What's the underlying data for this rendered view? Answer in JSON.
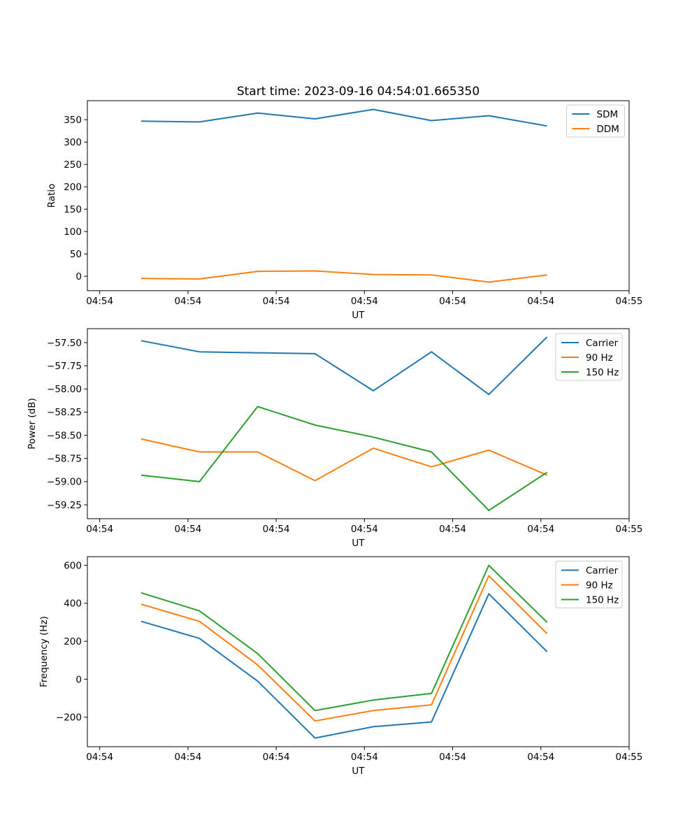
{
  "figure": {
    "title": "Start time: 2023-09-16 04:54:01.665350",
    "background": "#ffffff"
  },
  "colors": {
    "blue": "#1f77b4",
    "orange": "#ff7f0e",
    "green": "#2ca02c",
    "legend_border": "#cccccc",
    "axes": "#000000"
  },
  "chart_data": [
    {
      "type": "line",
      "title": "",
      "xlabel": "UT",
      "ylabel": "Ratio",
      "grid": false,
      "legend_position": "upper right",
      "x_units": "seconds after 04:54:00",
      "x": [
        4.7,
        11.3,
        17.9,
        24.4,
        31.0,
        37.6,
        44.1,
        50.7
      ],
      "xlim": [
        -1.4,
        60
      ],
      "xticks": [
        0,
        10,
        20,
        30,
        40,
        50,
        60
      ],
      "xtick_labels": [
        "04:54",
        "04:54",
        "04:54",
        "04:54",
        "04:54",
        "04:54",
        "04:55"
      ],
      "ylim": [
        -32.3,
        392.6
      ],
      "yticks": [
        0,
        50,
        100,
        150,
        200,
        250,
        300,
        350
      ],
      "ytick_labels": [
        "0",
        "50",
        "100",
        "150",
        "200",
        "250",
        "300",
        "350"
      ],
      "series": [
        {
          "name": "SDM",
          "color": "#1f77b4",
          "values": [
            347,
            345,
            365,
            352,
            373,
            348,
            359,
            336
          ]
        },
        {
          "name": "DDM",
          "color": "#ff7f0e",
          "values": [
            -5,
            -6,
            11,
            12,
            4,
            3,
            -13,
            3
          ]
        }
      ]
    },
    {
      "type": "line",
      "title": "",
      "xlabel": "UT",
      "ylabel": "Power (dB)",
      "grid": false,
      "legend_position": "upper right",
      "x_units": "seconds after 04:54:00",
      "x": [
        4.7,
        11.3,
        17.9,
        24.4,
        31.0,
        37.6,
        44.1,
        50.7
      ],
      "xlim": [
        -1.4,
        60
      ],
      "xticks": [
        0,
        10,
        20,
        30,
        40,
        50,
        60
      ],
      "xtick_labels": [
        "04:54",
        "04:54",
        "04:54",
        "04:54",
        "04:54",
        "04:54",
        "04:55"
      ],
      "ylim": [
        -59.4,
        -57.35
      ],
      "yticks": [
        -59.25,
        -59.0,
        -58.75,
        -58.5,
        -58.25,
        -58.0,
        -57.75,
        -57.5
      ],
      "ytick_labels": [
        "−59.25",
        "−59.00",
        "−58.75",
        "−58.50",
        "−58.25",
        "−58.00",
        "−57.75",
        "−57.50"
      ],
      "series": [
        {
          "name": "Carrier",
          "color": "#1f77b4",
          "values": [
            -57.48,
            -57.6,
            -57.61,
            -57.62,
            -58.02,
            -57.6,
            -58.06,
            -57.44
          ]
        },
        {
          "name": "90 Hz",
          "color": "#ff7f0e",
          "values": [
            -58.54,
            -58.68,
            -58.68,
            -58.99,
            -58.64,
            -58.84,
            -58.66,
            -58.93
          ]
        },
        {
          "name": "150 Hz",
          "color": "#2ca02c",
          "values": [
            -58.93,
            -59.0,
            -58.19,
            -58.39,
            -58.52,
            -58.68,
            -59.31,
            -58.9
          ]
        }
      ]
    },
    {
      "type": "line",
      "title": "",
      "xlabel": "UT",
      "ylabel": "Frequency (Hz)",
      "grid": false,
      "legend_position": "upper right",
      "x_units": "seconds after 04:54:00",
      "x": [
        4.7,
        11.3,
        17.9,
        24.4,
        31.0,
        37.6,
        44.1,
        50.7
      ],
      "xlim": [
        -1.4,
        60
      ],
      "xticks": [
        0,
        10,
        20,
        30,
        40,
        50,
        60
      ],
      "xtick_labels": [
        "04:54",
        "04:54",
        "04:54",
        "04:54",
        "04:54",
        "04:54",
        "04:55"
      ],
      "ylim": [
        -355.5,
        645.5
      ],
      "yticks": [
        -200,
        0,
        200,
        400,
        600
      ],
      "ytick_labels": [
        "−200",
        "0",
        "200",
        "400",
        "600"
      ],
      "series": [
        {
          "name": "Carrier",
          "color": "#1f77b4",
          "values": [
            305,
            215,
            -10,
            -310,
            -250,
            -225,
            450,
            145
          ]
        },
        {
          "name": "90 Hz",
          "color": "#ff7f0e",
          "values": [
            395,
            305,
            75,
            -220,
            -165,
            -135,
            545,
            240
          ]
        },
        {
          "name": "150 Hz",
          "color": "#2ca02c",
          "values": [
            455,
            360,
            135,
            -165,
            -110,
            -75,
            600,
            300
          ]
        }
      ]
    }
  ]
}
